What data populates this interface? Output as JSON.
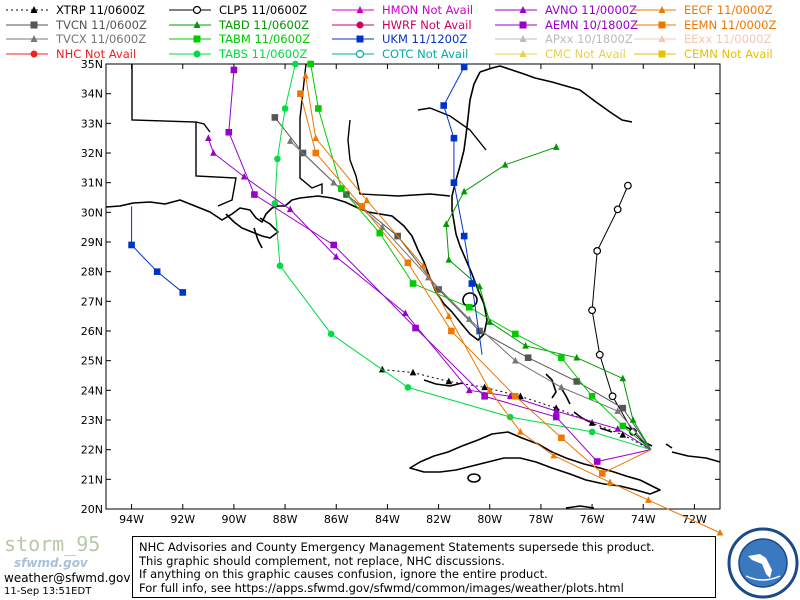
{
  "legend": [
    {
      "name": "XTRP",
      "status": "11/0600Z",
      "color": "#000000",
      "marker": "triangle",
      "dash": "2,3"
    },
    {
      "name": "CLP5",
      "status": "11/0600Z",
      "color": "#000000",
      "marker": "open-circle",
      "dash": ""
    },
    {
      "name": "HMON",
      "status": "Not Avail",
      "color": "#cc00cc",
      "marker": "triangle",
      "dash": ""
    },
    {
      "name": "AVNO",
      "status": "11/0000Z",
      "color": "#9900cc",
      "marker": "triangle",
      "dash": ""
    },
    {
      "name": "EECF",
      "status": "11/0000Z",
      "color": "#ee7700",
      "marker": "triangle",
      "dash": ""
    },
    {
      "name": "TVCN",
      "status": "11/0600Z",
      "color": "#555555",
      "marker": "square",
      "dash": ""
    },
    {
      "name": "TABD",
      "status": "11/0600Z",
      "color": "#009900",
      "marker": "triangle",
      "dash": ""
    },
    {
      "name": "HWRF",
      "status": "Not Avail",
      "color": "#cc0066",
      "marker": "circle",
      "dash": ""
    },
    {
      "name": "AEMN",
      "status": "10/1800Z",
      "color": "#9900cc",
      "marker": "square",
      "dash": ""
    },
    {
      "name": "EEMN",
      "status": "11/0000Z",
      "color": "#ee7700",
      "marker": "square",
      "dash": ""
    },
    {
      "name": "TVCX",
      "status": "11/0600Z",
      "color": "#777777",
      "marker": "triangle",
      "dash": ""
    },
    {
      "name": "TABM",
      "status": "11/0600Z",
      "color": "#00cc00",
      "marker": "square",
      "dash": ""
    },
    {
      "name": "UKM",
      "status": "11/1200Z",
      "color": "#0033cc",
      "marker": "square",
      "dash": ""
    },
    {
      "name": "APxx",
      "status": "10/1800Z",
      "color": "#bbbbbb",
      "marker": "triangle",
      "dash": ""
    },
    {
      "name": "EExx",
      "status": "11/0000Z",
      "color": "#f2c8b0",
      "marker": "triangle",
      "dash": ""
    },
    {
      "name": "NHC",
      "status": "Not Avail",
      "color": "#ee2222",
      "marker": "circle",
      "dash": ""
    },
    {
      "name": "TABS",
      "status": "11/0600Z",
      "color": "#00dd44",
      "marker": "circle",
      "dash": ""
    },
    {
      "name": "COTC",
      "status": "Not Avail",
      "color": "#00aaaa",
      "marker": "open-circle",
      "dash": ""
    },
    {
      "name": "CMC",
      "status": "Not Avail",
      "color": "#e8d04a",
      "marker": "triangle",
      "dash": ""
    },
    {
      "name": "CEMN",
      "status": "Not Avail",
      "color": "#e8c000",
      "marker": "square",
      "dash": ""
    }
  ],
  "map": {
    "lon_range": [
      -95,
      -71
    ],
    "lat_range": [
      20,
      35
    ],
    "lat_ticks": [
      "35N",
      "34N",
      "33N",
      "32N",
      "31N",
      "30N",
      "29N",
      "28N",
      "27N",
      "26N",
      "25N",
      "24N",
      "23N",
      "22N",
      "21N",
      "20N"
    ],
    "lon_ticks": [
      "94W",
      "92W",
      "90W",
      "88W",
      "86W",
      "84W",
      "82W",
      "80W",
      "78W",
      "76W",
      "74W",
      "72W"
    ]
  },
  "tracks": [
    {
      "model": "XTRP",
      "color": "#000000",
      "marker": "triangle",
      "dash": "2,3",
      "points": [
        [
          -73.7,
          22.0
        ],
        [
          -74.8,
          22.5
        ],
        [
          -76.0,
          22.9
        ],
        [
          -77.4,
          23.4
        ],
        [
          -78.8,
          23.8
        ],
        [
          -80.2,
          24.1
        ],
        [
          -81.6,
          24.3
        ],
        [
          -83.0,
          24.6
        ],
        [
          -84.2,
          24.7
        ]
      ]
    },
    {
      "model": "CLP5",
      "color": "#000000",
      "marker": "open-circle",
      "dash": "",
      "points": [
        [
          -73.7,
          22.0
        ],
        [
          -74.4,
          22.6
        ],
        [
          -75.2,
          23.8
        ],
        [
          -75.7,
          25.2
        ],
        [
          -76.0,
          26.7
        ],
        [
          -75.8,
          28.7
        ],
        [
          -75.0,
          30.1
        ],
        [
          -74.6,
          30.9
        ]
      ]
    },
    {
      "model": "TVCN",
      "color": "#555555",
      "marker": "square",
      "dash": "",
      "points": [
        [
          -73.7,
          22.0
        ],
        [
          -74.8,
          23.4
        ],
        [
          -76.6,
          24.3
        ],
        [
          -78.5,
          25.1
        ],
        [
          -80.4,
          26.0
        ],
        [
          -82.0,
          27.4
        ],
        [
          -83.6,
          29.2
        ],
        [
          -85.6,
          30.6
        ],
        [
          -87.3,
          32.0
        ],
        [
          -88.4,
          33.2
        ]
      ]
    },
    {
      "model": "TVCX",
      "color": "#777777",
      "marker": "triangle",
      "dash": "",
      "points": [
        [
          -73.7,
          22.0
        ],
        [
          -75.0,
          23.3
        ],
        [
          -77.2,
          24.1
        ],
        [
          -79.0,
          25.0
        ],
        [
          -80.8,
          26.4
        ],
        [
          -82.4,
          27.8
        ],
        [
          -84.2,
          29.5
        ],
        [
          -86.1,
          31.0
        ],
        [
          -87.8,
          32.4
        ]
      ]
    },
    {
      "model": "TABD",
      "color": "#009900",
      "marker": "triangle",
      "dash": "",
      "points": [
        [
          -73.7,
          22.0
        ],
        [
          -74.4,
          23.0
        ],
        [
          -74.8,
          24.4
        ],
        [
          -76.6,
          25.1
        ],
        [
          -78.6,
          25.5
        ],
        [
          -80.0,
          26.3
        ],
        [
          -80.4,
          27.5
        ],
        [
          -81.6,
          28.4
        ],
        [
          -81.7,
          29.6
        ],
        [
          -81.0,
          30.7
        ],
        [
          -79.4,
          31.6
        ],
        [
          -77.4,
          32.2
        ]
      ]
    },
    {
      "model": "TABM",
      "color": "#00cc00",
      "marker": "square",
      "dash": "",
      "points": [
        [
          -73.7,
          22.0
        ],
        [
          -74.8,
          22.8
        ],
        [
          -76.0,
          23.8
        ],
        [
          -77.2,
          25.1
        ],
        [
          -79.0,
          25.9
        ],
        [
          -80.8,
          26.8
        ],
        [
          -83.0,
          27.6
        ],
        [
          -84.3,
          29.3
        ],
        [
          -85.8,
          30.8
        ],
        [
          -86.7,
          33.5
        ],
        [
          -87.0,
          35.0
        ]
      ]
    },
    {
      "model": "TABS",
      "color": "#00dd44",
      "marker": "circle",
      "dash": "",
      "points": [
        [
          -73.7,
          22.0
        ],
        [
          -76.0,
          22.6
        ],
        [
          -79.2,
          23.1
        ],
        [
          -83.2,
          24.1
        ],
        [
          -86.2,
          25.9
        ],
        [
          -88.2,
          28.2
        ],
        [
          -88.4,
          30.3
        ],
        [
          -88.3,
          31.8
        ],
        [
          -88.0,
          33.5
        ],
        [
          -87.6,
          35.0
        ]
      ]
    },
    {
      "model": "AVNO",
      "color": "#9900cc",
      "marker": "triangle",
      "dash": "",
      "points": [
        [
          -73.7,
          22.0
        ],
        [
          -75.0,
          22.7
        ],
        [
          -77.4,
          23.3
        ],
        [
          -79.2,
          23.8
        ],
        [
          -80.8,
          24.0
        ],
        [
          -83.3,
          26.6
        ],
        [
          -86.0,
          28.5
        ],
        [
          -87.8,
          30.1
        ],
        [
          -89.6,
          31.2
        ],
        [
          -90.8,
          32.0
        ],
        [
          -91.0,
          32.5
        ]
      ]
    },
    {
      "model": "AEMN",
      "color": "#9900cc",
      "marker": "square",
      "dash": "",
      "points": [
        [
          -73.7,
          22.0
        ],
        [
          -75.8,
          21.6
        ],
        [
          -77.4,
          23.1
        ],
        [
          -80.2,
          23.8
        ],
        [
          -82.9,
          26.1
        ],
        [
          -86.1,
          28.9
        ],
        [
          -89.2,
          30.6
        ],
        [
          -90.2,
          32.7
        ],
        [
          -90.0,
          34.8
        ]
      ]
    },
    {
      "model": "EECF",
      "color": "#ee7700",
      "marker": "triangle",
      "dash": "",
      "points": [
        [
          -71.0,
          19.2
        ],
        [
          -73.8,
          20.3
        ],
        [
          -75.3,
          20.9
        ],
        [
          -77.5,
          21.8
        ],
        [
          -78.8,
          22.6
        ],
        [
          -80.0,
          24.0
        ],
        [
          -81.6,
          26.5
        ],
        [
          -82.6,
          28.2
        ],
        [
          -84.8,
          30.4
        ],
        [
          -86.8,
          32.5
        ],
        [
          -87.2,
          34.6
        ]
      ]
    },
    {
      "model": "EEMN",
      "color": "#ee7700",
      "marker": "square",
      "dash": "",
      "points": [
        [
          -73.7,
          22.0
        ],
        [
          -75.6,
          21.2
        ],
        [
          -77.2,
          22.4
        ],
        [
          -79.0,
          23.8
        ],
        [
          -81.5,
          26.0
        ],
        [
          -83.2,
          28.3
        ],
        [
          -85.0,
          30.2
        ],
        [
          -86.8,
          32.0
        ],
        [
          -87.4,
          34.0
        ]
      ]
    },
    {
      "model": "UKM",
      "color": "#0033cc",
      "marker": "square",
      "dash": "",
      "points": [
        [
          -80.3,
          25.2
        ],
        [
          -80.7,
          27.6
        ],
        [
          -81.0,
          29.2
        ],
        [
          -81.4,
          31.0
        ],
        [
          -81.4,
          32.5
        ],
        [
          -81.8,
          33.6
        ],
        [
          -81.0,
          34.9
        ]
      ]
    },
    {
      "model": "UKM",
      "color": "#0033cc",
      "marker": "square",
      "dash": "",
      "points": [
        [
          -94.0,
          30.2
        ],
        [
          -94.0,
          28.9
        ],
        [
          -93.0,
          28.0
        ],
        [
          -92.0,
          27.3
        ]
      ]
    }
  ],
  "disclaimer": [
    "NHC Advisories and County Emergency Management Statements supersede this product.",
    "This graphic should complement, not replace, NHC discussions.",
    "If anything on this graphic causes confusion, ignore the entire product.",
    "For full info, see  https://apps.sfwmd.gov/sfwmd/common/images/weather/plots.html"
  ],
  "footer": {
    "watermark": "storm_95",
    "watermark_sub": "sfwmd.gov",
    "email": "weather@sfwmd.gov",
    "timestamp": "11-Sep 13:51EDT"
  }
}
